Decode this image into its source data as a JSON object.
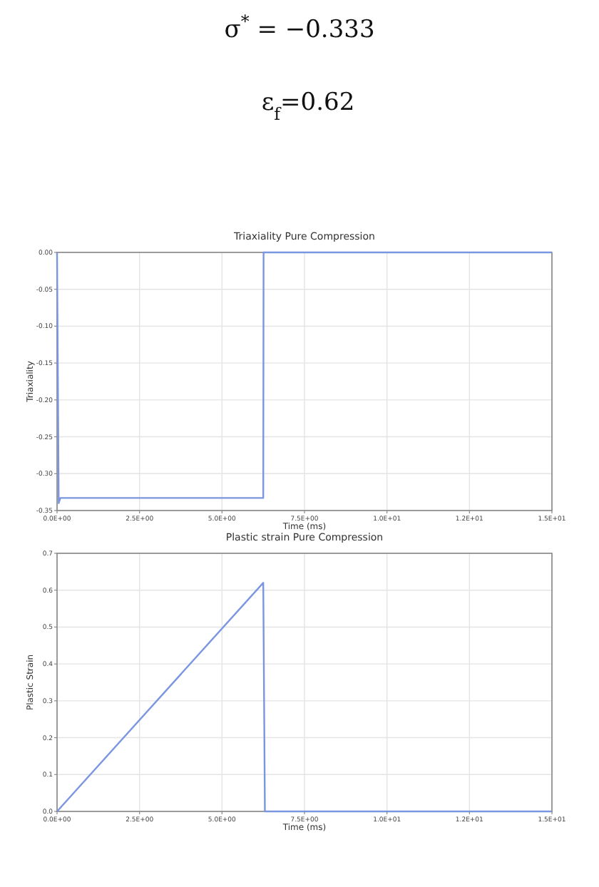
{
  "chart_data": [
    {
      "type": "line",
      "title": "Triaxiality Pure Compression",
      "xlabel": "Time (ms)",
      "ylabel": "Triaxiality",
      "annotations": [
        "σ$^{*}$ = −0.333",
        "ε$_{f}$=0.62"
      ],
      "series": [
        {
          "color": "#7b96e0",
          "x": [
            0,
            0.05,
            0.1,
            0.2,
            6.25,
            6.26,
            15
          ],
          "values": [
            0,
            -0.34,
            -0.333,
            -0.333,
            -0.333,
            0,
            0
          ]
        }
      ],
      "xlim": [
        0,
        15
      ],
      "ylim": [
        -0.35,
        0
      ],
      "xticks": [
        {
          "value": 0,
          "label": "0.0E+00"
        },
        {
          "value": 2.5,
          "label": "2.5E+00"
        },
        {
          "value": 5,
          "label": "5.0E+00"
        },
        {
          "value": 7.5,
          "label": "7.5E+00"
        },
        {
          "value": 10,
          "label": "1.0E+01"
        },
        {
          "value": 12.5,
          "label": "1.2E+01"
        },
        {
          "value": 15,
          "label": "1.5E+01"
        }
      ],
      "yticks": [
        {
          "value": -0.35,
          "label": "-0.35"
        },
        {
          "value": -0.3,
          "label": "-0.30"
        },
        {
          "value": -0.25,
          "label": "-0.25"
        },
        {
          "value": -0.2,
          "label": "-0.20"
        },
        {
          "value": -0.15,
          "label": "-0.15"
        },
        {
          "value": -0.1,
          "label": "-0.10"
        },
        {
          "value": -0.05,
          "label": "-0.05"
        },
        {
          "value": 0,
          "label": "0.00"
        }
      ],
      "grid": true
    },
    {
      "type": "line",
      "title": "Plastic strain Pure Compression",
      "xlabel": "Time (ms)",
      "ylabel": "Plastic Strain",
      "series": [
        {
          "color": "#7b96e0",
          "x": [
            0,
            6.25,
            6.3,
            15
          ],
          "values": [
            0,
            0.62,
            0,
            0
          ]
        }
      ],
      "xlim": [
        0,
        15
      ],
      "ylim": [
        0,
        0.7
      ],
      "xticks": [
        {
          "value": 0,
          "label": "0.0E+00"
        },
        {
          "value": 2.5,
          "label": "2.5E+00"
        },
        {
          "value": 5,
          "label": "5.0E+00"
        },
        {
          "value": 7.5,
          "label": "7.5E+00"
        },
        {
          "value": 10,
          "label": "1.0E+01"
        },
        {
          "value": 12.5,
          "label": "1.2E+01"
        },
        {
          "value": 15,
          "label": "1.5E+01"
        }
      ],
      "yticks": [
        {
          "value": 0,
          "label": "0.0"
        },
        {
          "value": 0.1,
          "label": "0.1"
        },
        {
          "value": 0.2,
          "label": "0.2"
        },
        {
          "value": 0.3,
          "label": "0.3"
        },
        {
          "value": 0.4,
          "label": "0.4"
        },
        {
          "value": 0.5,
          "label": "0.5"
        },
        {
          "value": 0.6,
          "label": "0.6"
        },
        {
          "value": 0.7,
          "label": "0.7"
        }
      ],
      "grid": true
    }
  ]
}
